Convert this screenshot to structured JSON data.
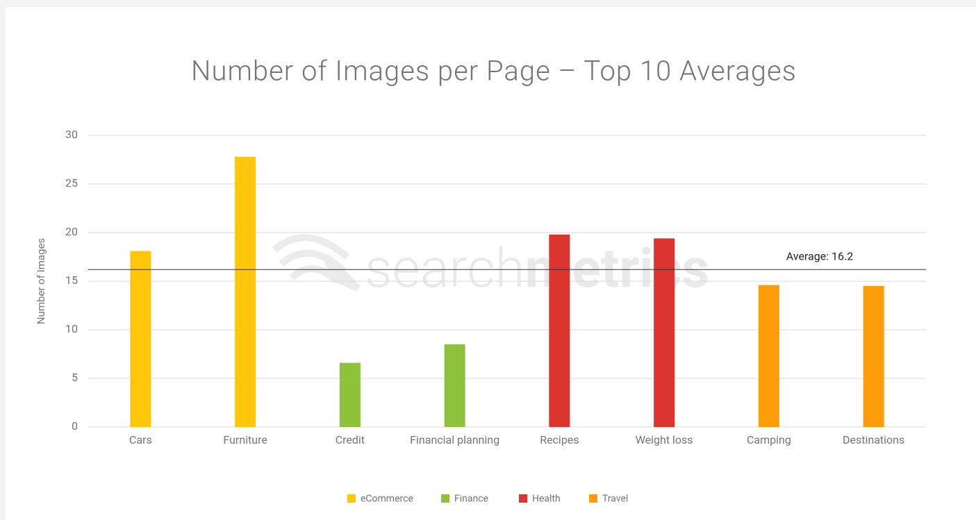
{
  "chart_data": {
    "type": "bar",
    "title": "Number of Images per Page – Top 10 Averages",
    "y_label": "Number of Images",
    "watermark": [
      "search",
      "metrics"
    ],
    "categories": [
      "Cars",
      "Furniture",
      "Credit",
      "Financial planning",
      "Recipes",
      "Weight loss",
      "Camping",
      "Destinations"
    ],
    "series": [
      {
        "name": "eCommerce",
        "color": "#ffc60b",
        "values": [
          18.1,
          27.8,
          null,
          null,
          null,
          null,
          null,
          null
        ]
      },
      {
        "name": "Finance",
        "color": "#8dc23a",
        "values": [
          null,
          null,
          6.6,
          8.5,
          null,
          null,
          null,
          null
        ]
      },
      {
        "name": "Health",
        "color": "#dc3530",
        "values": [
          null,
          null,
          null,
          null,
          19.8,
          19.4,
          null,
          null
        ]
      },
      {
        "name": "Travel",
        "color": "#ff9c0a",
        "values": [
          null,
          null,
          null,
          null,
          null,
          null,
          14.6,
          14.5
        ]
      }
    ],
    "reference_line": {
      "value": 16.2,
      "label": "Average: 16.2"
    },
    "ylim": [
      0,
      30
    ],
    "yticks": [
      0,
      5,
      10,
      15,
      20,
      25,
      30
    ],
    "grid": true,
    "legend": "bottom"
  }
}
